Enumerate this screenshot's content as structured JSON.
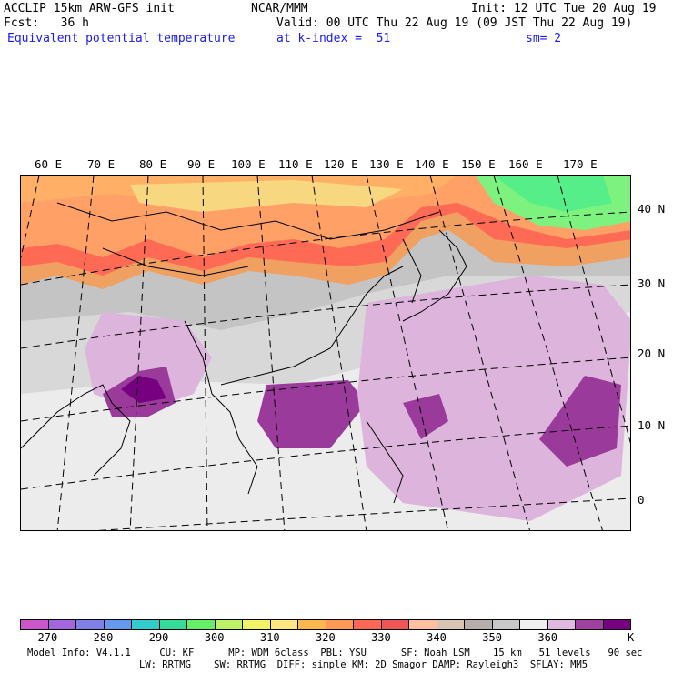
{
  "header": {
    "left_line1": "ACCLIP 15km ARW-GFS init",
    "center_line1": "NCAR/MMM",
    "right_line1": "Init: 12 UTC Tue 20 Aug 19",
    "left_line2": "Fcst:   36 h",
    "right_line2": "Valid: 00 UTC Thu 22 Aug 19 (09 JST Thu 22 Aug 19)",
    "left_line3": "Equivalent potential temperature",
    "center_line3": "at k-index =  51",
    "right_line3": "sm= 2"
  },
  "map": {
    "lon_labels": [
      "60 E",
      "70 E",
      "80 E",
      "90 E",
      "100 E",
      "110 E",
      "120 E",
      "130 E",
      "140 E",
      "150 E",
      "160 E",
      "170 E"
    ],
    "lat_labels": [
      "40 N",
      "30 N",
      "20 N",
      "10 N",
      "0"
    ]
  },
  "colorbar": {
    "colors": [
      "#cc55cc",
      "#a366dd",
      "#7f7fe6",
      "#6699ee",
      "#33cccc",
      "#33dd99",
      "#66ee66",
      "#bbf266",
      "#f2f266",
      "#ffe680",
      "#ffb84d",
      "#ff9955",
      "#ff6655",
      "#ee5555",
      "#ffc0a0",
      "#d9c4b3",
      "#b5aeab",
      "#c8c8c8",
      "#eeeeee",
      "#e0b8e0",
      "#a040a0",
      "#760080"
    ],
    "tick_labels": [
      "270",
      "280",
      "290",
      "300",
      "310",
      "320",
      "330",
      "340",
      "350",
      "360"
    ],
    "unit": "K"
  },
  "footer": {
    "line1": "Model Info: V4.1.1     CU: KF      MP: WDM 6class  PBL: YSU      SF: Noah LSM    15 km   51 levels   90 sec",
    "line2": "LW: RRTMG    SW: RRTMG  DIFF: simple KM: 2D Smagor DAMP: Rayleigh3  SFLAY: MM5"
  }
}
